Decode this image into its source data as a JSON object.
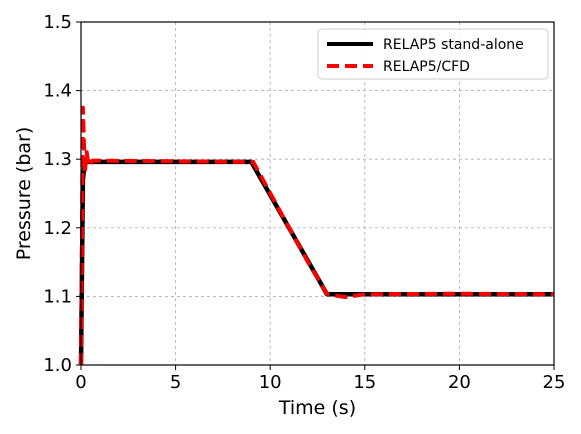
{
  "chart_data": {
    "type": "line",
    "xlabel": "Time (s)",
    "ylabel": "Pressure (bar)",
    "xlim": [
      0,
      25
    ],
    "ylim": [
      1.0,
      1.5
    ],
    "xticks": [
      0,
      5,
      10,
      15,
      20,
      25
    ],
    "yticks": [
      1.0,
      1.1,
      1.2,
      1.3,
      1.4,
      1.5
    ],
    "xtick_labels": [
      "0",
      "5",
      "10",
      "15",
      "20",
      "25"
    ],
    "ytick_labels": [
      "1.0",
      "1.1",
      "1.2",
      "1.3",
      "1.4",
      "1.5"
    ],
    "grid": true,
    "legend_position": "top-right",
    "series": [
      {
        "name": "RELAP5 stand-alone",
        "color": "#000000",
        "style": "solid",
        "x": [
          0.0,
          0.1,
          0.2,
          0.3,
          5.0,
          9.0,
          13.0,
          15.0,
          20.0,
          25.0
        ],
        "y": [
          1.0,
          1.27,
          1.296,
          1.296,
          1.296,
          1.296,
          1.103,
          1.103,
          1.103,
          1.103
        ]
      },
      {
        "name": "RELAP5/CFD",
        "color": "#ff0000",
        "style": "dashed",
        "x": [
          0.0,
          0.1,
          0.15,
          0.2,
          0.3,
          0.4,
          0.6,
          5.0,
          9.1,
          11.0,
          12.0,
          13.0,
          13.5,
          14.0,
          14.5,
          15.0,
          20.0,
          25.0
        ],
        "y": [
          1.0,
          1.375,
          1.33,
          1.28,
          1.31,
          1.29,
          1.298,
          1.297,
          1.296,
          1.2,
          1.15,
          1.104,
          1.101,
          1.099,
          1.101,
          1.103,
          1.104,
          1.103
        ]
      }
    ]
  }
}
